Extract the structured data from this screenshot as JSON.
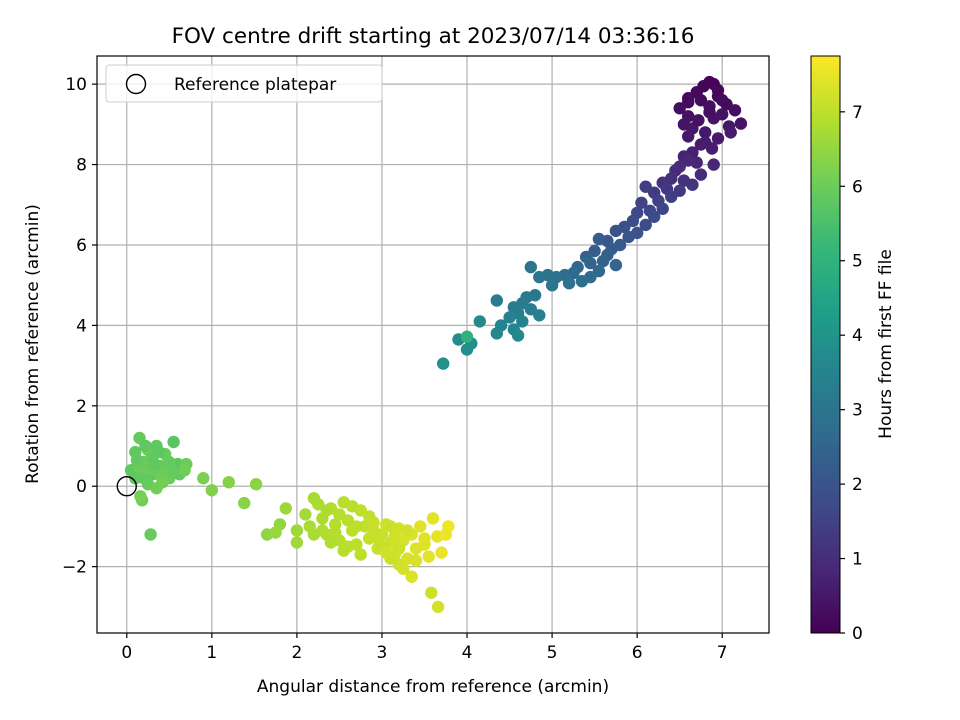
{
  "chart_data": {
    "type": "scatter",
    "title": "FOV centre drift starting at 2023/07/14 03:36:16",
    "xlabel": "Angular distance from reference (arcmin)",
    "ylabel": "Rotation from reference (arcmin)",
    "xlim": [
      -0.35,
      7.55
    ],
    "ylim": [
      -3.65,
      10.7
    ],
    "xticks": [
      0,
      1,
      2,
      3,
      4,
      5,
      6,
      7
    ],
    "yticks": [
      -2,
      0,
      2,
      4,
      6,
      8,
      10
    ],
    "grid": true,
    "legend": {
      "position": "top-left",
      "entries": [
        {
          "label": "Reference platepar",
          "marker": "open-circle",
          "x": 0,
          "y": 0
        }
      ]
    },
    "colorbar": {
      "label": "Hours from first FF file",
      "min": 0,
      "max": 7.75,
      "ticks": [
        0,
        1,
        2,
        3,
        4,
        5,
        6,
        7
      ],
      "colormap": "viridis"
    },
    "points": [
      [
        6.85,
        10.05,
        0.05
      ],
      [
        6.78,
        9.95,
        0.1
      ],
      [
        6.9,
        10.0,
        0.12
      ],
      [
        6.7,
        9.8,
        0.15
      ],
      [
        6.95,
        9.7,
        0.18
      ],
      [
        6.6,
        9.55,
        0.2
      ],
      [
        7.05,
        9.5,
        0.22
      ],
      [
        6.75,
        9.6,
        0.25
      ],
      [
        7.15,
        9.35,
        0.28
      ],
      [
        6.5,
        9.4,
        0.3
      ],
      [
        6.85,
        9.45,
        0.33
      ],
      [
        6.6,
        9.2,
        0.35
      ],
      [
        7.0,
        9.25,
        0.38
      ],
      [
        6.55,
        9.0,
        0.4
      ],
      [
        6.9,
        9.15,
        0.42
      ],
      [
        7.22,
        9.02,
        0.4
      ],
      [
        6.65,
        8.9,
        0.45
      ],
      [
        7.08,
        8.95,
        0.48
      ],
      [
        6.8,
        8.8,
        0.5
      ],
      [
        6.6,
        8.7,
        0.52
      ],
      [
        6.95,
        8.65,
        0.55
      ],
      [
        7.1,
        8.8,
        0.58
      ],
      [
        6.75,
        8.5,
        0.6
      ],
      [
        6.85,
        9.3,
        0.3
      ],
      [
        6.72,
        9.1,
        0.35
      ],
      [
        7.0,
        9.6,
        0.25
      ],
      [
        6.6,
        9.65,
        0.22
      ],
      [
        6.95,
        9.85,
        0.15
      ],
      [
        6.88,
        8.4,
        0.65
      ],
      [
        6.65,
        8.3,
        0.7
      ],
      [
        6.8,
        8.55,
        0.62
      ],
      [
        6.55,
        8.2,
        0.75
      ],
      [
        6.7,
        8.05,
        0.8
      ],
      [
        6.9,
        8.0,
        0.85
      ],
      [
        6.5,
        7.95,
        0.9
      ],
      [
        6.6,
        8.1,
        0.88
      ],
      [
        6.45,
        7.85,
        0.95
      ],
      [
        6.75,
        7.75,
        1.0
      ],
      [
        6.4,
        7.65,
        1.05
      ],
      [
        6.55,
        7.6,
        1.1
      ],
      [
        6.3,
        7.55,
        1.15
      ],
      [
        6.65,
        7.5,
        1.2
      ],
      [
        6.35,
        7.4,
        1.25
      ],
      [
        6.5,
        7.35,
        1.3
      ],
      [
        6.2,
        7.3,
        1.35
      ],
      [
        6.1,
        7.45,
        1.4
      ],
      [
        6.4,
        7.2,
        1.45
      ],
      [
        6.25,
        7.1,
        1.5
      ],
      [
        6.05,
        7.05,
        1.55
      ],
      [
        6.3,
        6.9,
        1.6
      ],
      [
        6.15,
        6.85,
        1.65
      ],
      [
        6.0,
        6.8,
        1.7
      ],
      [
        6.2,
        6.7,
        1.75
      ],
      [
        5.95,
        6.6,
        1.8
      ],
      [
        6.1,
        6.5,
        1.85
      ],
      [
        5.85,
        6.45,
        1.9
      ],
      [
        6.0,
        6.3,
        1.95
      ],
      [
        5.75,
        6.35,
        2.0
      ],
      [
        5.9,
        6.2,
        2.05
      ],
      [
        5.65,
        6.1,
        2.1
      ],
      [
        5.8,
        6.0,
        2.15
      ],
      [
        5.55,
        6.15,
        2.2
      ],
      [
        5.7,
        5.9,
        2.25
      ],
      [
        5.5,
        5.85,
        2.3
      ],
      [
        5.65,
        5.75,
        2.35
      ],
      [
        5.4,
        5.7,
        2.4
      ],
      [
        5.6,
        5.6,
        2.45
      ],
      [
        5.45,
        5.55,
        2.5
      ],
      [
        5.75,
        5.5,
        2.52
      ],
      [
        5.3,
        5.45,
        2.55
      ],
      [
        5.55,
        5.35,
        2.6
      ],
      [
        5.25,
        5.3,
        2.65
      ],
      [
        5.45,
        5.2,
        2.7
      ],
      [
        5.15,
        5.25,
        2.75
      ],
      [
        5.35,
        5.1,
        2.8
      ],
      [
        5.05,
        5.2,
        2.85
      ],
      [
        5.2,
        5.05,
        2.9
      ],
      [
        4.95,
        5.25,
        2.95
      ],
      [
        4.85,
        5.2,
        3.0
      ],
      [
        5.0,
        5.0,
        3.05
      ],
      [
        4.75,
        5.45,
        3.05
      ],
      [
        4.8,
        4.75,
        3.1
      ],
      [
        4.7,
        4.7,
        3.15
      ],
      [
        4.65,
        4.55,
        3.2
      ],
      [
        4.55,
        4.45,
        3.25
      ],
      [
        4.75,
        4.4,
        3.3
      ],
      [
        4.6,
        4.3,
        3.35
      ],
      [
        4.5,
        4.2,
        3.4
      ],
      [
        4.85,
        4.25,
        3.42
      ],
      [
        4.65,
        4.1,
        3.45
      ],
      [
        4.4,
        4.0,
        3.5
      ],
      [
        4.55,
        3.9,
        3.55
      ],
      [
        4.35,
        3.8,
        3.6
      ],
      [
        4.6,
        3.75,
        3.65
      ],
      [
        4.15,
        4.1,
        3.7
      ],
      [
        4.35,
        4.62,
        3.2
      ],
      [
        3.9,
        3.65,
        3.75
      ],
      [
        4.05,
        3.55,
        3.8
      ],
      [
        4.0,
        3.4,
        3.85
      ],
      [
        3.72,
        3.05,
        3.9
      ],
      [
        4.0,
        3.72,
        5.0
      ],
      [
        0.05,
        0.4,
        5.8
      ],
      [
        0.1,
        0.85,
        5.85
      ],
      [
        0.15,
        1.2,
        5.9
      ],
      [
        0.2,
        0.6,
        5.95
      ],
      [
        0.25,
        0.9,
        6.0
      ],
      [
        0.3,
        0.3,
        5.8
      ],
      [
        0.35,
        1.0,
        5.85
      ],
      [
        0.4,
        0.5,
        5.9
      ],
      [
        0.45,
        0.8,
        5.95
      ],
      [
        0.5,
        0.2,
        6.0
      ],
      [
        0.55,
        1.1,
        5.7
      ],
      [
        0.6,
        0.55,
        5.75
      ],
      [
        0.2,
        0.2,
        5.82
      ],
      [
        0.3,
        0.7,
        5.88
      ],
      [
        0.25,
        0.05,
        5.92
      ],
      [
        0.15,
        0.45,
        5.96
      ],
      [
        0.4,
        0.25,
        6.02
      ],
      [
        0.35,
        -0.05,
        6.05
      ],
      [
        0.45,
        0.35,
        6.0
      ],
      [
        0.5,
        0.6,
        5.9
      ],
      [
        0.1,
        0.2,
        5.85
      ],
      [
        0.22,
        1.0,
        5.8
      ],
      [
        0.38,
        0.85,
        5.78
      ],
      [
        0.28,
        0.4,
        5.95
      ],
      [
        0.12,
        0.65,
        5.88
      ],
      [
        0.62,
        0.3,
        5.9
      ],
      [
        0.7,
        0.55,
        6.0
      ],
      [
        0.68,
        0.4,
        6.05
      ],
      [
        0.42,
        0.1,
        6.1
      ],
      [
        0.18,
        -0.35,
        6.05
      ],
      [
        0.16,
        -0.25,
        6.15
      ],
      [
        0.28,
        -1.2,
        5.95
      ],
      [
        0.55,
        0.35,
        5.9
      ],
      [
        0.33,
        0.55,
        5.85
      ],
      [
        0.9,
        0.2,
        6.2
      ],
      [
        1.0,
        -0.1,
        6.25
      ],
      [
        1.2,
        0.1,
        6.3
      ],
      [
        1.38,
        -0.42,
        6.35
      ],
      [
        1.52,
        0.05,
        6.4
      ],
      [
        1.65,
        -1.2,
        6.45
      ],
      [
        1.8,
        -0.95,
        6.5
      ],
      [
        1.75,
        -1.15,
        6.55
      ],
      [
        1.87,
        -0.55,
        6.6
      ],
      [
        2.0,
        -1.1,
        6.62
      ],
      [
        2.0,
        -1.4,
        6.65
      ],
      [
        2.1,
        -0.7,
        6.7
      ],
      [
        2.2,
        -0.3,
        6.72
      ],
      [
        2.15,
        -1.0,
        6.75
      ],
      [
        2.25,
        -0.45,
        6.78
      ],
      [
        2.3,
        -0.8,
        6.8
      ],
      [
        2.35,
        -1.2,
        6.82
      ],
      [
        2.4,
        -0.55,
        6.85
      ],
      [
        2.45,
        -0.95,
        6.88
      ],
      [
        2.5,
        -1.35,
        6.9
      ],
      [
        2.55,
        -0.4,
        6.92
      ],
      [
        2.6,
        -0.85,
        6.95
      ],
      [
        2.65,
        -1.1,
        6.97
      ],
      [
        2.7,
        -1.45,
        7.0
      ],
      [
        2.75,
        -0.6,
        7.02
      ],
      [
        2.8,
        -1.0,
        7.05
      ],
      [
        2.85,
        -1.3,
        7.08
      ],
      [
        2.9,
        -0.9,
        7.1
      ],
      [
        2.95,
        -1.55,
        7.12
      ],
      [
        3.0,
        -1.2,
        7.15
      ],
      [
        3.05,
        -0.95,
        7.18
      ],
      [
        3.1,
        -1.4,
        7.2
      ],
      [
        3.15,
        -1.7,
        7.22
      ],
      [
        3.2,
        -1.05,
        7.25
      ],
      [
        3.25,
        -1.35,
        7.28
      ],
      [
        3.3,
        -1.8,
        7.3
      ],
      [
        3.35,
        -1.2,
        7.32
      ],
      [
        3.4,
        -1.55,
        7.35
      ],
      [
        3.45,
        -1.0,
        7.38
      ],
      [
        3.5,
        -1.45,
        7.4
      ],
      [
        3.55,
        -1.75,
        7.42
      ],
      [
        3.6,
        -0.8,
        7.45
      ],
      [
        3.65,
        -1.25,
        7.48
      ],
      [
        3.7,
        -1.65,
        7.5
      ],
      [
        3.78,
        -1.0,
        7.6
      ],
      [
        3.75,
        -1.2,
        7.55
      ],
      [
        2.3,
        -1.1,
        6.85
      ],
      [
        2.5,
        -0.7,
        6.9
      ],
      [
        2.6,
        -1.5,
        6.95
      ],
      [
        2.7,
        -1.0,
        7.0
      ],
      [
        2.85,
        -0.75,
        7.05
      ],
      [
        3.0,
        -1.5,
        7.1
      ],
      [
        3.1,
        -1.0,
        7.15
      ],
      [
        3.2,
        -1.55,
        7.2
      ],
      [
        3.3,
        -1.1,
        7.25
      ],
      [
        3.4,
        -1.85,
        7.3
      ],
      [
        3.35,
        -2.25,
        7.32
      ],
      [
        3.2,
        -1.95,
        7.22
      ],
      [
        3.25,
        -2.05,
        7.25
      ],
      [
        3.1,
        -1.8,
        7.15
      ],
      [
        2.4,
        -1.4,
        6.85
      ],
      [
        2.55,
        -1.6,
        6.92
      ],
      [
        2.95,
        -1.3,
        7.1
      ],
      [
        3.58,
        -2.65,
        7.2
      ],
      [
        3.66,
        -3.0,
        7.25
      ],
      [
        3.5,
        -1.3,
        7.4
      ],
      [
        2.2,
        -1.2,
        6.75
      ],
      [
        2.45,
        -1.15,
        6.88
      ],
      [
        2.75,
        -1.7,
        7.0
      ],
      [
        3.05,
        -1.65,
        7.18
      ],
      [
        3.15,
        -1.25,
        7.2
      ],
      [
        2.65,
        -0.5,
        6.95
      ],
      [
        2.35,
        -0.6,
        6.8
      ],
      [
        2.9,
        -1.1,
        7.08
      ]
    ]
  }
}
